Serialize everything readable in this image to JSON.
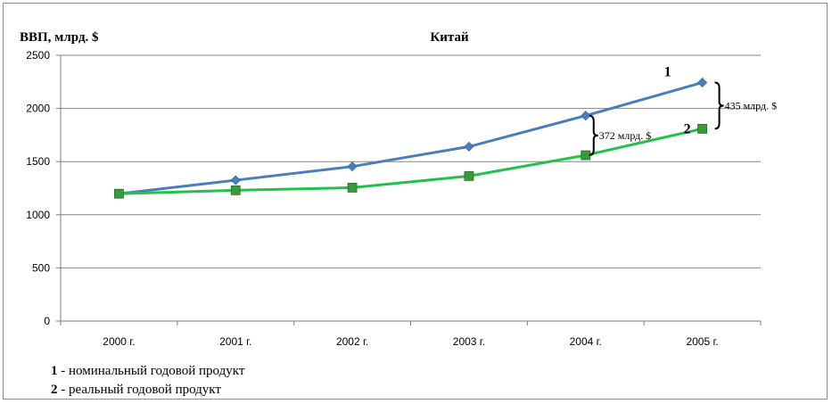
{
  "chart_data": {
    "type": "line",
    "title": "Китай",
    "ylabel": "ВВП, млрд. $",
    "categories": [
      "2000 г.",
      "2001 г.",
      "2002 г.",
      "2003 г.",
      "2004 г.",
      "2005 г."
    ],
    "ylim": [
      0,
      2500
    ],
    "yticks": [
      0,
      500,
      1000,
      1500,
      2000,
      2500
    ],
    "grid": true,
    "series": [
      {
        "label": "1",
        "values": [
          1198,
          1325,
          1454,
          1641,
          1932,
          2244
        ],
        "color": "#4a7ebb",
        "marker": "diamond"
      },
      {
        "label": "2",
        "values": [
          1198,
          1230,
          1255,
          1364,
          1560,
          1809
        ],
        "color": "#22c24a",
        "marker": "square",
        "marker_color": "#3a9a3a"
      }
    ],
    "annotations": [
      {
        "text": "372  млрд. $",
        "category_index": 4
      },
      {
        "text": "435 млрд. $",
        "category_index": 5
      }
    ]
  },
  "legend": [
    {
      "num": "1",
      "text": " - номинальный  годовой продукт"
    },
    {
      "num": "2",
      "text": " - реальный годовой продукт"
    }
  ]
}
